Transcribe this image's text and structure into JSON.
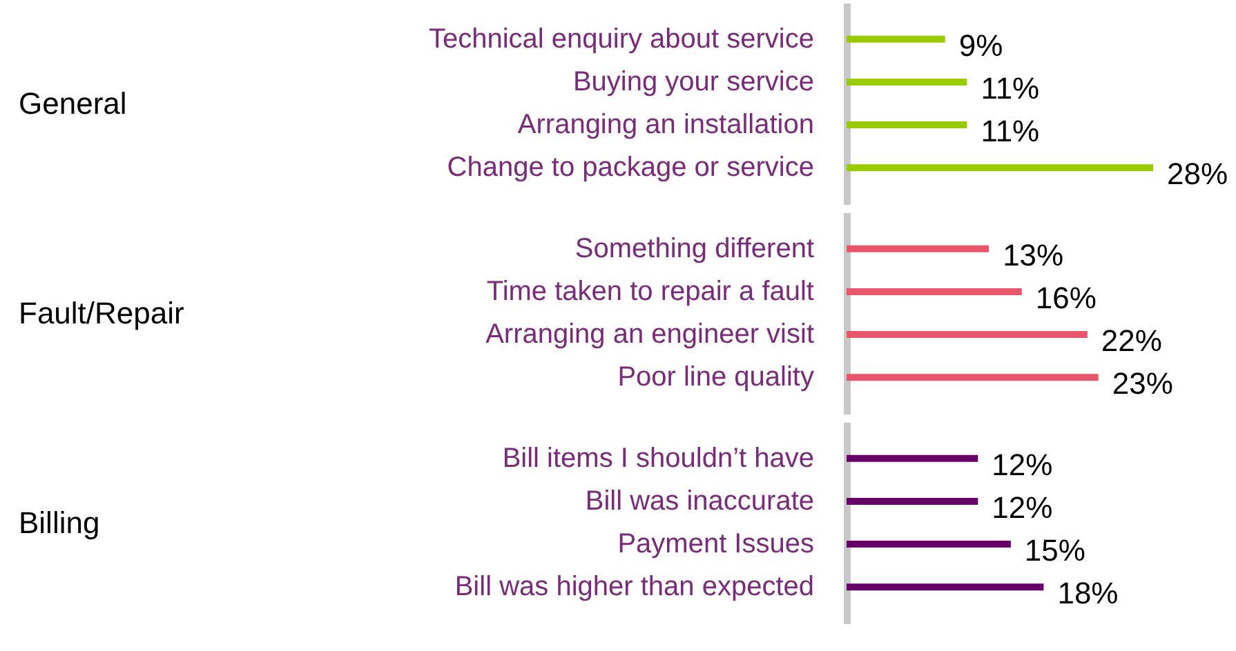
{
  "chart_data": [
    {
      "type": "bar",
      "orientation": "horizontal",
      "ylabel": "General",
      "categories": [
        "Technical enquiry about service",
        "Buying your service",
        "Arranging an installation",
        "Change to package or service"
      ],
      "values": [
        9,
        11,
        11,
        28
      ],
      "color": "#99cc00",
      "value_labels": [
        "9%",
        "11%",
        "11%",
        "28%"
      ]
    },
    {
      "type": "bar",
      "orientation": "horizontal",
      "ylabel": "Fault/Repair",
      "categories": [
        "Something different",
        "Time taken to repair a fault",
        "Arranging an engineer visit",
        "Poor line quality"
      ],
      "values": [
        13,
        16,
        22,
        23
      ],
      "color": "#e8566b",
      "value_labels": [
        "13%",
        "16%",
        "22%",
        "23%"
      ]
    },
    {
      "type": "bar",
      "orientation": "horizontal",
      "ylabel": "Billing",
      "categories": [
        "Bill items I shouldn’t have",
        "Bill was inaccurate",
        "Payment Issues",
        "Bill was higher than expected"
      ],
      "values": [
        12,
        12,
        15,
        18
      ],
      "color": "#660066",
      "value_labels": [
        "12%",
        "12%",
        "15%",
        "18%"
      ]
    }
  ]
}
